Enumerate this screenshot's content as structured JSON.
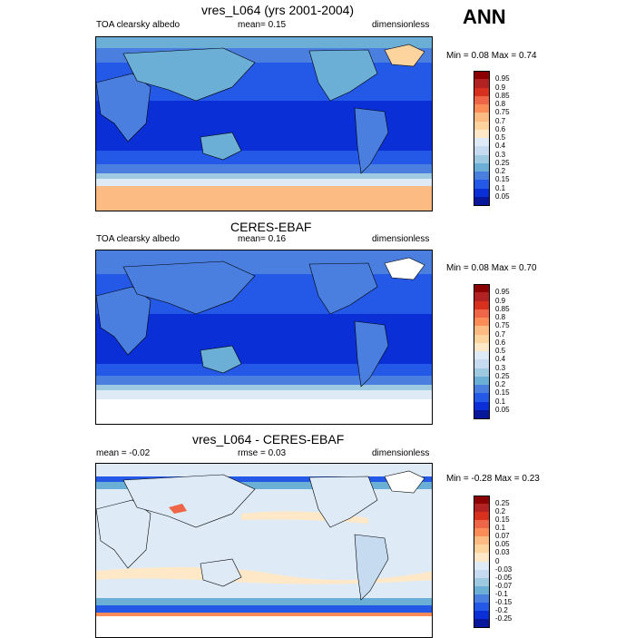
{
  "season": "ANN",
  "panels": [
    {
      "title": "vres_L064 (yrs 2001-2004)",
      "left_label": "TOA clearsky albedo",
      "center_label": "mean=  0.15",
      "right_label": "dimensionless",
      "minmax": "Min =  0.08 Max =  0.74",
      "colorbar_labels": [
        "0.95",
        "0.9",
        "0.85",
        "0.8",
        "0.75",
        "0.7",
        "0.6",
        "0.5",
        "0.4",
        "0.3",
        "0.25",
        "0.2",
        "0.15",
        "0.1",
        "0.05"
      ],
      "colorbar_colors": [
        "#8b0000",
        "#b22222",
        "#d7301f",
        "#ef6548",
        "#fc8d59",
        "#fdbb84",
        "#fdd49e",
        "#fee8c8",
        "#deebf7",
        "#c6dbef",
        "#9ecae1",
        "#6baed6",
        "#4a7fe0",
        "#2458e6",
        "#0a2fd6",
        "#08169c"
      ]
    },
    {
      "title": "CERES-EBAF",
      "left_label": "TOA clearsky albedo",
      "center_label": "mean=  0.16",
      "right_label": "dimensionless",
      "minmax": "Min =  0.08 Max =  0.70",
      "colorbar_labels": [
        "0.95",
        "0.9",
        "0.85",
        "0.8",
        "0.75",
        "0.7",
        "0.6",
        "0.5",
        "0.4",
        "0.3",
        "0.25",
        "0.2",
        "0.15",
        "0.1",
        "0.05"
      ],
      "colorbar_colors": [
        "#8b0000",
        "#b22222",
        "#d7301f",
        "#ef6548",
        "#fc8d59",
        "#fdbb84",
        "#fdd49e",
        "#fee8c8",
        "#deebf7",
        "#c6dbef",
        "#9ecae1",
        "#6baed6",
        "#4a7fe0",
        "#2458e6",
        "#0a2fd6",
        "#08169c"
      ]
    },
    {
      "title": "vres_L064 - CERES-EBAF",
      "left_label": "mean =  -0.02",
      "center_label": "rmse =  0.03",
      "right_label": "dimensionless",
      "minmax": "Min =  -0.28 Max =  0.23",
      "colorbar_labels": [
        "0.25",
        "0.2",
        "0.15",
        "0.1",
        "0.07",
        "0.05",
        "0.03",
        "0",
        "-0.03",
        "-0.05",
        "-0.07",
        "-0.1",
        "-0.15",
        "-0.2",
        "-0.25"
      ],
      "colorbar_colors": [
        "#8b0000",
        "#b22222",
        "#d7301f",
        "#ef6548",
        "#fc8d59",
        "#fdbb84",
        "#fdd49e",
        "#fee8c8",
        "#deebf7",
        "#c6dbef",
        "#9ecae1",
        "#6baed6",
        "#4a7fe0",
        "#2458e6",
        "#0a2fd6",
        "#08169c"
      ]
    }
  ],
  "chart_data": [
    {
      "type": "heatmap",
      "title": "vres_L064 (yrs 2001-2004)",
      "variable": "TOA clearsky albedo",
      "units": "dimensionless",
      "mean": 0.15,
      "min": 0.08,
      "max": 0.74,
      "levels": [
        0.05,
        0.1,
        0.15,
        0.2,
        0.25,
        0.3,
        0.4,
        0.5,
        0.6,
        0.7,
        0.75,
        0.8,
        0.85,
        0.9,
        0.95
      ]
    },
    {
      "type": "heatmap",
      "title": "CERES-EBAF",
      "variable": "TOA clearsky albedo",
      "units": "dimensionless",
      "mean": 0.16,
      "min": 0.08,
      "max": 0.7,
      "levels": [
        0.05,
        0.1,
        0.15,
        0.2,
        0.25,
        0.3,
        0.4,
        0.5,
        0.6,
        0.7,
        0.75,
        0.8,
        0.85,
        0.9,
        0.95
      ]
    },
    {
      "type": "heatmap",
      "title": "vres_L064 - CERES-EBAF",
      "units": "dimensionless",
      "mean": -0.02,
      "rmse": 0.03,
      "min": -0.28,
      "max": 0.23,
      "levels": [
        -0.25,
        -0.2,
        -0.15,
        -0.1,
        -0.07,
        -0.05,
        -0.03,
        0,
        0.03,
        0.05,
        0.07,
        0.1,
        0.15,
        0.2,
        0.25
      ]
    }
  ]
}
